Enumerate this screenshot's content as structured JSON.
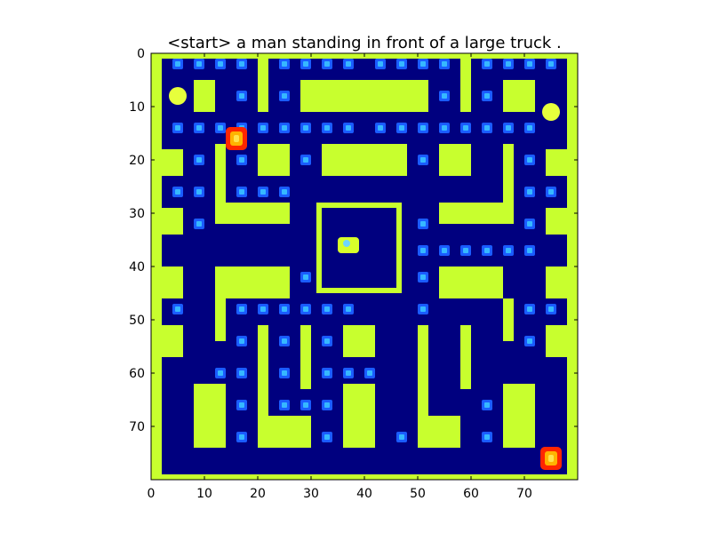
{
  "title": "<start> a man standing in front of a large truck .",
  "axes": {
    "x_ticks": [
      "0",
      "10",
      "20",
      "30",
      "40",
      "50",
      "60",
      "70"
    ],
    "y_ticks": [
      "0",
      "10",
      "20",
      "30",
      "40",
      "50",
      "60",
      "70"
    ],
    "x_range": [
      0,
      80
    ],
    "y_range": [
      0,
      80
    ]
  },
  "colors": {
    "background": "#00007f",
    "wall": "#c8ff2e",
    "pellet_outer": "#1a5cff",
    "pellet_inner": "#36b8ff",
    "ghost_outer": "#ff2600",
    "ghost_inner": "#ffb300",
    "ghost_center": "#ffe34d",
    "pacman": "#d8ff2a",
    "power_pellet": "#e7ff3c"
  },
  "game": {
    "walls": [
      [
        0,
        0,
        2,
        80
      ],
      [
        78,
        0,
        2,
        80
      ],
      [
        0,
        0,
        80,
        1
      ],
      [
        0,
        79,
        80,
        1
      ],
      [
        0,
        18,
        6,
        5
      ],
      [
        74,
        18,
        6,
        5
      ],
      [
        0,
        29,
        6,
        5
      ],
      [
        74,
        29,
        6,
        5
      ],
      [
        0,
        40,
        6,
        6
      ],
      [
        74,
        40,
        6,
        6
      ],
      [
        0,
        51,
        6,
        6
      ],
      [
        74,
        51,
        6,
        6
      ],
      [
        8,
        5,
        4,
        6
      ],
      [
        20,
        0,
        2,
        11
      ],
      [
        28,
        5,
        24,
        6
      ],
      [
        58,
        0,
        2,
        11
      ],
      [
        66,
        5,
        6,
        6
      ],
      [
        12,
        17,
        2,
        15
      ],
      [
        14,
        28,
        12,
        4
      ],
      [
        20,
        17,
        6,
        6
      ],
      [
        32,
        17,
        16,
        6
      ],
      [
        54,
        17,
        6,
        6
      ],
      [
        66,
        17,
        2,
        15
      ],
      [
        54,
        28,
        12,
        4
      ],
      [
        31,
        28,
        16,
        1
      ],
      [
        31,
        44,
        16,
        1
      ],
      [
        31,
        28,
        1,
        17
      ],
      [
        46,
        28,
        1,
        17
      ],
      [
        12,
        40,
        14,
        6
      ],
      [
        54,
        40,
        12,
        6
      ],
      [
        12,
        46,
        2,
        8
      ],
      [
        66,
        46,
        2,
        8
      ],
      [
        20,
        51,
        2,
        21
      ],
      [
        28,
        51,
        2,
        12
      ],
      [
        36,
        51,
        6,
        6
      ],
      [
        50,
        51,
        2,
        21
      ],
      [
        58,
        51,
        2,
        12
      ],
      [
        8,
        62,
        6,
        12
      ],
      [
        20,
        68,
        10,
        6
      ],
      [
        36,
        62,
        6,
        12
      ],
      [
        50,
        68,
        8,
        6
      ],
      [
        66,
        62,
        6,
        12
      ]
    ],
    "pellets": [
      [
        5,
        2
      ],
      [
        9,
        2
      ],
      [
        13,
        2
      ],
      [
        17,
        2
      ],
      [
        25,
        2
      ],
      [
        29,
        2
      ],
      [
        33,
        2
      ],
      [
        37,
        2
      ],
      [
        43,
        2
      ],
      [
        47,
        2
      ],
      [
        51,
        2
      ],
      [
        55,
        2
      ],
      [
        63,
        2
      ],
      [
        67,
        2
      ],
      [
        71,
        2
      ],
      [
        75,
        2
      ],
      [
        17,
        8
      ],
      [
        25,
        8
      ],
      [
        55,
        8
      ],
      [
        63,
        8
      ],
      [
        5,
        14
      ],
      [
        9,
        14
      ],
      [
        13,
        14
      ],
      [
        17,
        14
      ],
      [
        21,
        14
      ],
      [
        25,
        14
      ],
      [
        29,
        14
      ],
      [
        33,
        14
      ],
      [
        37,
        14
      ],
      [
        43,
        14
      ],
      [
        47,
        14
      ],
      [
        51,
        14
      ],
      [
        55,
        14
      ],
      [
        59,
        14
      ],
      [
        63,
        14
      ],
      [
        67,
        14
      ],
      [
        71,
        14
      ],
      [
        9,
        20
      ],
      [
        17,
        20
      ],
      [
        29,
        20
      ],
      [
        51,
        20
      ],
      [
        71,
        20
      ],
      [
        5,
        26
      ],
      [
        9,
        26
      ],
      [
        17,
        26
      ],
      [
        21,
        26
      ],
      [
        25,
        26
      ],
      [
        71,
        26
      ],
      [
        75,
        26
      ],
      [
        9,
        32
      ],
      [
        51,
        32
      ],
      [
        71,
        32
      ],
      [
        51,
        37
      ],
      [
        55,
        37
      ],
      [
        59,
        37
      ],
      [
        63,
        37
      ],
      [
        67,
        37
      ],
      [
        71,
        37
      ],
      [
        29,
        42
      ],
      [
        51,
        42
      ],
      [
        5,
        48
      ],
      [
        17,
        48
      ],
      [
        21,
        48
      ],
      [
        25,
        48
      ],
      [
        29,
        48
      ],
      [
        33,
        48
      ],
      [
        37,
        48
      ],
      [
        51,
        48
      ],
      [
        71,
        48
      ],
      [
        75,
        48
      ],
      [
        17,
        54
      ],
      [
        25,
        54
      ],
      [
        33,
        54
      ],
      [
        71,
        54
      ],
      [
        13,
        60
      ],
      [
        17,
        60
      ],
      [
        25,
        60
      ],
      [
        33,
        60
      ],
      [
        37,
        60
      ],
      [
        41,
        60
      ],
      [
        17,
        66
      ],
      [
        25,
        66
      ],
      [
        29,
        66
      ],
      [
        33,
        66
      ],
      [
        63,
        66
      ],
      [
        17,
        72
      ],
      [
        33,
        72
      ],
      [
        47,
        72
      ],
      [
        63,
        72
      ]
    ],
    "power_pellets": [
      [
        5,
        8
      ],
      [
        75,
        11
      ]
    ],
    "ghosts": [
      [
        16,
        16
      ],
      [
        75,
        76
      ]
    ],
    "pacman": [
      37,
      36
    ]
  }
}
